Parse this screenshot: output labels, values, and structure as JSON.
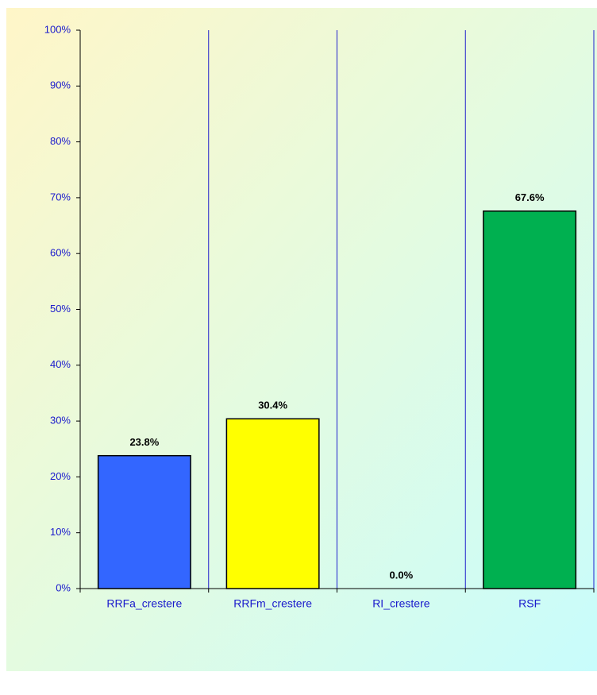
{
  "chart_data": {
    "type": "bar",
    "categories": [
      "RRFa_crestere",
      "RRFm_crestere",
      "RI_crestere",
      "RSF"
    ],
    "values": [
      23.8,
      30.4,
      0.0,
      67.6
    ],
    "value_labels": [
      "23.8%",
      "30.4%",
      "0.0%",
      "67.6%"
    ],
    "colors": [
      "#3366ff",
      "#ffff00",
      "#999999",
      "#00b050"
    ],
    "ylim": [
      0,
      100
    ],
    "yticks": [
      {
        "value": 0,
        "label": "0%"
      },
      {
        "value": 10,
        "label": "10%"
      },
      {
        "value": 20,
        "label": "20%"
      },
      {
        "value": 30,
        "label": "30%"
      },
      {
        "value": 40,
        "label": "40%"
      },
      {
        "value": 50,
        "label": "50%"
      },
      {
        "value": 60,
        "label": "60%"
      },
      {
        "value": 70,
        "label": "70%"
      },
      {
        "value": 80,
        "label": "80%"
      },
      {
        "value": 90,
        "label": "90%"
      },
      {
        "value": 100,
        "label": "100%"
      }
    ],
    "grid": true
  }
}
